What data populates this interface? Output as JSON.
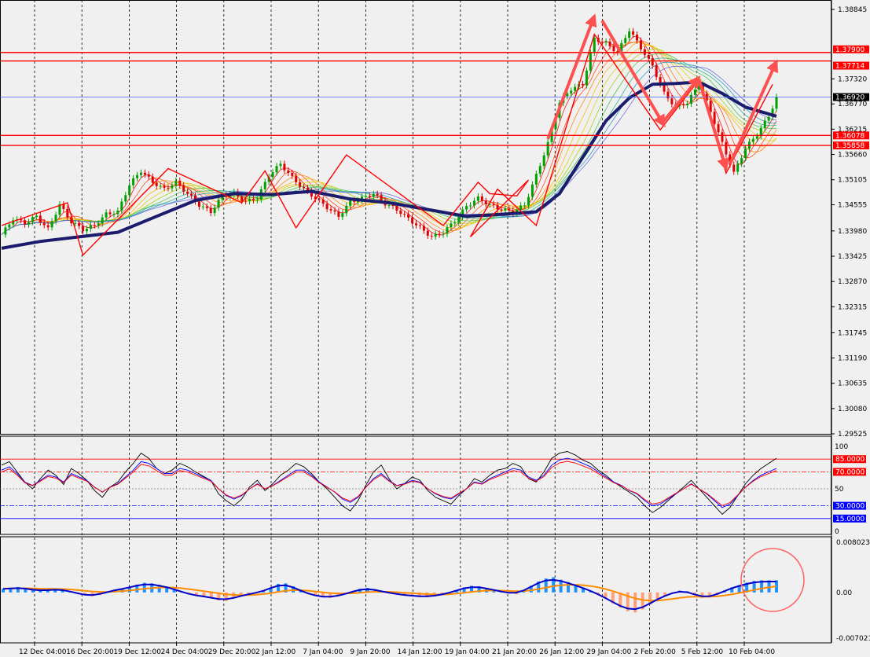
{
  "colors": {
    "background": "#f0f0f0",
    "grid": "#000000",
    "bull": "#00a000",
    "bear": "#e00000",
    "resistance": "#ff0000",
    "current_price_line": "#4060ff",
    "slow_ma": "#1c1c6e",
    "zigzag": "#ff0000",
    "arrow": "#ff5050",
    "macd_line": "#0000c8",
    "signal_line": "#ff8c00",
    "hist_pos": "#1e90ff",
    "hist_neg": "#ffa07a",
    "stoch_k": "#000000",
    "stoch_d": "#0000ff",
    "stoch_rsi": "#ff0000"
  },
  "chart_data": [
    {
      "type": "candlestick",
      "name": "main",
      "ylim": [
        1.29525,
        1.38845
      ],
      "y_ticks": [
        "1.38845",
        "1.37320",
        "1.36770",
        "1.36215",
        "1.35660",
        "1.35105",
        "1.34555",
        "1.33980",
        "1.33425",
        "1.32870",
        "1.32315",
        "1.31745",
        "1.31190",
        "1.30635",
        "1.30080",
        "1.29525"
      ],
      "x_ticks": [
        "12 Dec 04:00",
        "16 Dec 20:00",
        "19 Dec 12:00",
        "24 Dec 04:00",
        "29 Dec 20:00",
        "2 Jan 12:00",
        "7 Jan 04:00",
        "9 Jan 20:00",
        "14 Jan 12:00",
        "19 Jan 04:00",
        "21 Jan 20:00",
        "26 Jan 12:00",
        "29 Jan 04:00",
        "2 Feb 20:00",
        "5 Feb 12:00",
        "10 Feb 04:00"
      ],
      "price_path": [
        [
          0,
          1.339
        ],
        [
          3,
          1.3425
        ],
        [
          6,
          1.3415
        ],
        [
          9,
          1.343
        ],
        [
          12,
          1.3402
        ],
        [
          15,
          1.3455
        ],
        [
          18,
          1.3418
        ],
        [
          21,
          1.3401
        ],
        [
          24,
          1.341
        ],
        [
          27,
          1.3435
        ],
        [
          30,
          1.344
        ],
        [
          33,
          1.35
        ],
        [
          36,
          1.353
        ],
        [
          39,
          1.3505
        ],
        [
          42,
          1.349
        ],
        [
          45,
          1.3505
        ],
        [
          48,
          1.348
        ],
        [
          51,
          1.3455
        ],
        [
          54,
          1.344
        ],
        [
          57,
          1.3475
        ],
        [
          60,
          1.348
        ],
        [
          63,
          1.3462
        ],
        [
          66,
          1.347
        ],
        [
          69,
          1.352
        ],
        [
          72,
          1.3545
        ],
        [
          75,
          1.3515
        ],
        [
          78,
          1.349
        ],
        [
          81,
          1.347
        ],
        [
          84,
          1.345
        ],
        [
          87,
          1.343
        ],
        [
          90,
          1.3462
        ],
        [
          93,
          1.347
        ],
        [
          96,
          1.348
        ],
        [
          99,
          1.3458
        ],
        [
          102,
          1.3445
        ],
        [
          105,
          1.3425
        ],
        [
          108,
          1.3405
        ],
        [
          111,
          1.3385
        ],
        [
          114,
          1.3395
        ],
        [
          117,
          1.342
        ],
        [
          120,
          1.3452
        ],
        [
          123,
          1.347
        ],
        [
          126,
          1.3455
        ],
        [
          129,
          1.3445
        ],
        [
          132,
          1.344
        ],
        [
          135,
          1.3455
        ],
        [
          138,
          1.352
        ],
        [
          141,
          1.359
        ],
        [
          144,
          1.368
        ],
        [
          147,
          1.371
        ],
        [
          150,
          1.372
        ],
        [
          153,
          1.382
        ],
        [
          156,
          1.381
        ],
        [
          159,
          1.379
        ],
        [
          162,
          1.384
        ],
        [
          165,
          1.38
        ],
        [
          168,
          1.376
        ],
        [
          171,
          1.37
        ],
        [
          174,
          1.367
        ],
        [
          177,
          1.368
        ],
        [
          180,
          1.372
        ],
        [
          183,
          1.366
        ],
        [
          186,
          1.359
        ],
        [
          189,
          1.3525
        ],
        [
          192,
          1.358
        ],
        [
          195,
          1.361
        ],
        [
          198,
          1.365
        ],
        [
          200,
          1.369
        ]
      ],
      "slow_ma": [
        [
          0,
          1.336
        ],
        [
          10,
          1.3375
        ],
        [
          20,
          1.3385
        ],
        [
          30,
          1.3395
        ],
        [
          40,
          1.343
        ],
        [
          50,
          1.3465
        ],
        [
          60,
          1.348
        ],
        [
          70,
          1.3478
        ],
        [
          80,
          1.3485
        ],
        [
          90,
          1.3468
        ],
        [
          100,
          1.346
        ],
        [
          110,
          1.3445
        ],
        [
          120,
          1.343
        ],
        [
          130,
          1.3435
        ],
        [
          138,
          1.344
        ],
        [
          144,
          1.348
        ],
        [
          150,
          1.356
        ],
        [
          156,
          1.364
        ],
        [
          162,
          1.369
        ],
        [
          168,
          1.372
        ],
        [
          174,
          1.3722
        ],
        [
          180,
          1.3725
        ],
        [
          186,
          1.37
        ],
        [
          192,
          1.367
        ],
        [
          200,
          1.365
        ]
      ],
      "zigzag": [
        [
          0,
          1.341
        ],
        [
          17,
          1.346
        ],
        [
          21,
          1.3345
        ],
        [
          43,
          1.3535
        ],
        [
          62,
          1.346
        ],
        [
          68,
          1.353
        ],
        [
          76,
          1.3405
        ],
        [
          89,
          1.3565
        ],
        [
          114,
          1.341
        ],
        [
          123,
          1.3505
        ],
        [
          126,
          1.348
        ],
        [
          133,
          1.3475
        ],
        [
          136,
          1.351
        ],
        [
          121,
          1.3385
        ],
        [
          128,
          1.349
        ],
        [
          138,
          1.341
        ],
        [
          153,
          1.383
        ],
        [
          170,
          1.362
        ],
        [
          180,
          1.373
        ],
        [
          187,
          1.3525
        ],
        [
          199,
          1.372
        ]
      ],
      "levels": [
        {
          "label": "1.37900",
          "value": 1.379,
          "color": "#ff0000"
        },
        {
          "label": "1.37714",
          "value": 1.37714,
          "color": "#ff0000"
        },
        {
          "label": "1.36920",
          "value": 1.3692,
          "color": "#000000"
        },
        {
          "label": "1.36078",
          "value": 1.36078,
          "color": "#ff0000"
        },
        {
          "label": "1.35858",
          "value": 1.35858,
          "color": "#ff0000"
        }
      ],
      "arrows": [
        {
          "from": [
            141,
            1.36
          ],
          "to": [
            153,
            1.387
          ]
        },
        {
          "from": [
            155,
            1.386
          ],
          "to": [
            171,
            1.363
          ]
        },
        {
          "from": [
            171,
            1.364
          ],
          "to": [
            180,
            1.3735
          ]
        },
        {
          "from": [
            180,
            1.373
          ],
          "to": [
            187,
            1.3535
          ]
        },
        {
          "from": [
            188,
            1.3545
          ],
          "to": [
            200,
            1.377
          ]
        }
      ]
    },
    {
      "type": "line",
      "name": "stochastic",
      "ylim": [
        0,
        100
      ],
      "y_ticks": [
        "100",
        "85.0000",
        "70.0000",
        "50",
        "30.0000",
        "15.0000",
        "0"
      ],
      "levels": [
        {
          "label": "85.0000",
          "value": 85,
          "color": "#ff0000"
        },
        {
          "label": "70.0000",
          "value": 70,
          "color": "#ff0000"
        },
        {
          "label": "50",
          "value": 50,
          "color": "#808080"
        },
        {
          "label": "30.0000",
          "value": 30,
          "color": "#0000ff"
        },
        {
          "label": "15.0000",
          "value": 15,
          "color": "#0000ff"
        }
      ],
      "series": [
        {
          "values": [
            78,
            82,
            70,
            58,
            50,
            62,
            72,
            66,
            55,
            74,
            68,
            60,
            48,
            40,
            52,
            58,
            70,
            80,
            92,
            86,
            74,
            68,
            72,
            80,
            76,
            70,
            65,
            60,
            44,
            36,
            30,
            38,
            52,
            60,
            48,
            56,
            66,
            72,
            80,
            76,
            68,
            58,
            50,
            40,
            30,
            24,
            36,
            54,
            70,
            78,
            62,
            50,
            56,
            64,
            60,
            48,
            40,
            36,
            32,
            42,
            50,
            62,
            58,
            66,
            72,
            74,
            80,
            76,
            62,
            58,
            70,
            86,
            92,
            94,
            90,
            84,
            80,
            72,
            66,
            58,
            52,
            46,
            40,
            30,
            22,
            28,
            36,
            44,
            52,
            60,
            50,
            40,
            30,
            20,
            28,
            42,
            56,
            66,
            74,
            80,
            86
          ]
        },
        {
          "values": [
            72,
            76,
            68,
            58,
            54,
            60,
            66,
            64,
            58,
            68,
            64,
            60,
            52,
            46,
            52,
            56,
            64,
            72,
            82,
            80,
            74,
            68,
            68,
            74,
            72,
            68,
            64,
            60,
            50,
            42,
            38,
            42,
            50,
            56,
            50,
            54,
            60,
            66,
            72,
            72,
            66,
            58,
            52,
            46,
            38,
            34,
            40,
            52,
            62,
            68,
            60,
            54,
            56,
            60,
            58,
            50,
            44,
            40,
            38,
            44,
            50,
            58,
            56,
            62,
            66,
            70,
            74,
            72,
            64,
            60,
            66,
            78,
            84,
            86,
            84,
            80,
            76,
            70,
            64,
            58,
            54,
            48,
            44,
            36,
            30,
            32,
            38,
            44,
            50,
            56,
            50,
            44,
            36,
            28,
            32,
            42,
            52,
            60,
            66,
            70,
            74
          ]
        }
      ]
    },
    {
      "type": "bar",
      "name": "macd",
      "ylim": [
        -0.0070217,
        0.0080237
      ],
      "y_ticks": [
        "0.0080237",
        "0.00",
        "-0.0070217"
      ],
      "histogram": [
        1.2,
        1.5,
        1.8,
        1.4,
        1.0,
        0.6,
        0.8,
        1.2,
        1.0,
        0.4,
        -0.4,
        -0.9,
        -1.2,
        -0.8,
        0.3,
        0.8,
        1.3,
        1.8,
        2.6,
        3.2,
        3.0,
        2.5,
        2.0,
        1.2,
        0.2,
        -0.6,
        -1.2,
        -1.4,
        -1.8,
        -2.6,
        -2.8,
        -2.0,
        -1.2,
        -0.6,
        -0.2,
        0.5,
        1.6,
        2.8,
        3.0,
        2.0,
        0.6,
        -0.5,
        -1.2,
        -1.6,
        -1.8,
        -1.2,
        -0.6,
        0.2,
        1.2,
        1.5,
        1.0,
        0.3,
        -0.2,
        -0.6,
        -1.0,
        -1.2,
        -1.4,
        -1.6,
        -1.2,
        -0.8,
        -0.2,
        0.8,
        1.6,
        2.2,
        2.0,
        1.5,
        0.8,
        0.4,
        -0.2,
        -0.6,
        0.6,
        2.2,
        3.6,
        4.6,
        5.0,
        4.2,
        3.4,
        2.6,
        1.6,
        0.6,
        -0.6,
        -2.0,
        -3.6,
        -5.0,
        -6.2,
        -6.6,
        -5.6,
        -4.0,
        -2.4,
        -1.2,
        -0.2,
        0.6,
        0.4,
        -0.8,
        -1.8,
        -1.6,
        -0.8,
        0.6,
        1.6,
        2.4,
        3.2,
        3.8,
        4.0,
        4.0,
        4.0
      ]
    }
  ]
}
